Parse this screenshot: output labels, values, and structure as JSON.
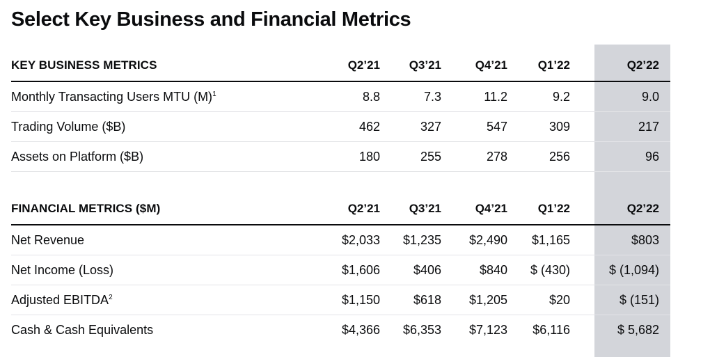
{
  "title": "Select Key Business and Financial Metrics",
  "business": {
    "header": {
      "label": "KEY BUSINESS METRICS",
      "cols": [
        "Q2’21",
        "Q3’21",
        "Q4’21",
        "Q1’22",
        "Q2’22"
      ]
    },
    "rows": [
      {
        "label": "Monthly Transacting Users MTU (M)",
        "sup": "1",
        "values": [
          "8.8",
          "7.3",
          "11.2",
          "9.2",
          "9.0"
        ]
      },
      {
        "label": "Trading Volume ($B)",
        "values": [
          "462",
          "327",
          "547",
          "309",
          "217"
        ]
      },
      {
        "label": "Assets on Platform ($B)",
        "values": [
          "180",
          "255",
          "278",
          "256",
          "96"
        ]
      }
    ]
  },
  "financial": {
    "header": {
      "label": "FINANCIAL METRICS ($M)",
      "cols": [
        "Q2’21",
        "Q3’21",
        "Q4’21",
        "Q1’22",
        "Q2’22"
      ]
    },
    "rows": [
      {
        "label": "Net Revenue",
        "values": [
          "$2,033",
          "$1,235",
          "$2,490",
          "$1,165",
          "$803"
        ]
      },
      {
        "label": "Net Income (Loss)",
        "values": [
          "$1,606",
          "$406",
          "$840",
          "$ (430)",
          "$ (1,094)"
        ]
      },
      {
        "label": "Adjusted EBITDA",
        "sup": "2",
        "values": [
          "$1,150",
          "$618",
          "$1,205",
          "$20",
          "$  (151)"
        ]
      },
      {
        "label": "Cash & Cash Equivalents",
        "values": [
          "$4,366",
          "$6,353",
          "$7,123",
          "$6,116",
          "$  5,682"
        ]
      }
    ]
  },
  "colors": {
    "highlight": "#d3d5da",
    "text": "#0a0b0d",
    "divider": "#e3e4e7"
  }
}
